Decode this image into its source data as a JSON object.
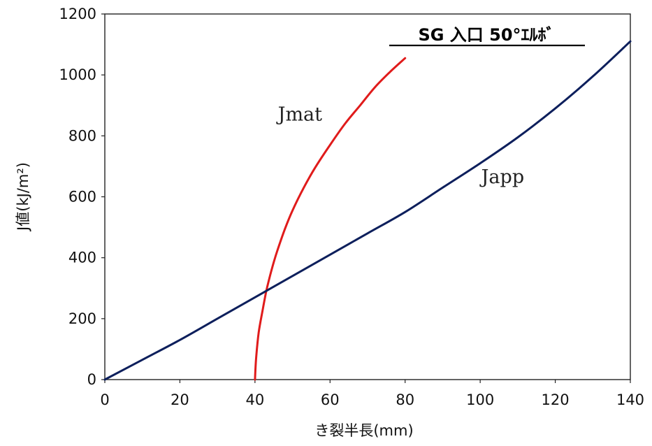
{
  "chart_data": {
    "type": "line",
    "title": "SG 入口 50°ｴﾙﾎﾞ",
    "xlabel": "き裂半長(mm)",
    "ylabel": "J値(kJ/m²)",
    "xlim": [
      0,
      140
    ],
    "ylim": [
      0,
      1200
    ],
    "xticks": [
      0,
      20,
      40,
      60,
      80,
      100,
      120,
      140
    ],
    "yticks": [
      0,
      200,
      400,
      600,
      800,
      1000,
      1200
    ],
    "grid": false,
    "legend": "none",
    "series": [
      {
        "name": "Jmat",
        "color": "#e01b1b",
        "x": [
          40,
          40.3,
          41,
          42,
          43,
          44,
          45,
          46,
          48,
          50,
          53,
          56,
          60,
          64,
          68,
          72,
          76,
          80
        ],
        "y": [
          0,
          70,
          155,
          225,
          290,
          340,
          385,
          425,
          495,
          555,
          630,
          695,
          770,
          840,
          900,
          960,
          1010,
          1055
        ]
      },
      {
        "name": "Japp",
        "color": "#0d1f5c",
        "x": [
          0,
          10,
          20,
          30,
          40,
          50,
          60,
          70,
          80,
          90,
          100,
          110,
          120,
          130,
          140
        ],
        "y": [
          0,
          65,
          130,
          200,
          270,
          340,
          410,
          480,
          550,
          630,
          710,
          795,
          890,
          995,
          1110
        ]
      }
    ],
    "annotations": [
      {
        "text": "Jmat",
        "x": 52,
        "y": 850
      },
      {
        "text": "Japp",
        "x": 106,
        "y": 645
      }
    ]
  }
}
